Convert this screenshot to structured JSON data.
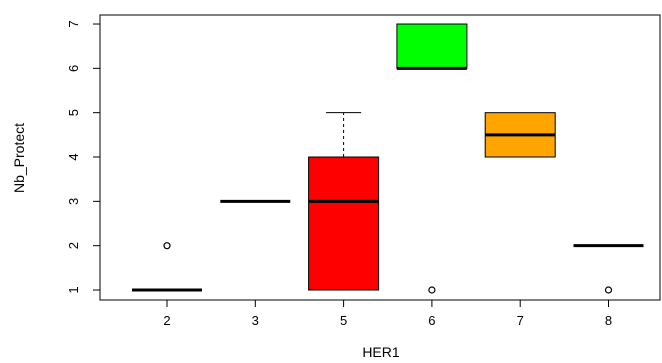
{
  "chart_data": {
    "type": "box",
    "xlabel": "HER1",
    "ylabel": "Nb_Protect",
    "ylim": [
      0.75,
      7.2
    ],
    "yticks": [
      1,
      2,
      3,
      4,
      5,
      6,
      7
    ],
    "grid": false,
    "categories": [
      "2",
      "3",
      "5",
      "6",
      "7",
      "8"
    ],
    "boxes": [
      {
        "category": "2",
        "q1": 1,
        "median": 1,
        "q3": 1,
        "whisker_low": 1,
        "whisker_high": 1,
        "outliers": [
          2
        ],
        "color": "#ffffff"
      },
      {
        "category": "3",
        "q1": 3,
        "median": 3,
        "q3": 3,
        "whisker_low": 3,
        "whisker_high": 3,
        "outliers": [],
        "color": "#ffffff"
      },
      {
        "category": "5",
        "q1": 1,
        "median": 3,
        "q3": 4,
        "whisker_low": 1,
        "whisker_high": 5,
        "outliers": [],
        "color": "#ff0000"
      },
      {
        "category": "6",
        "q1": 6,
        "median": 6,
        "q3": 7,
        "whisker_low": 6,
        "whisker_high": 7,
        "outliers": [
          1
        ],
        "color": "#00ff00"
      },
      {
        "category": "7",
        "q1": 4,
        "median": 4.5,
        "q3": 5,
        "whisker_low": 4,
        "whisker_high": 5,
        "outliers": [],
        "color": "#ffa500"
      },
      {
        "category": "8",
        "q1": 2,
        "median": 2,
        "q3": 2,
        "whisker_low": 2,
        "whisker_high": 2,
        "outliers": [
          1
        ],
        "color": "#ffffff"
      }
    ]
  }
}
